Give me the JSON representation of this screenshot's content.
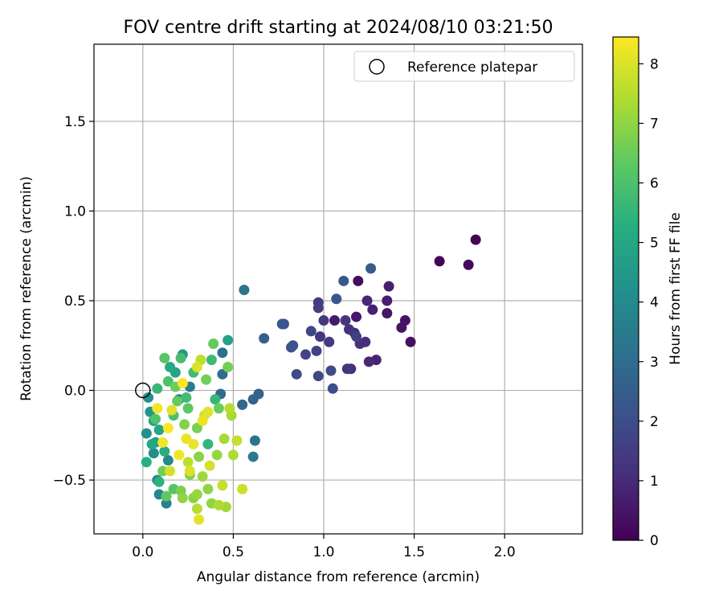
{
  "chart_data": {
    "type": "scatter",
    "title": "FOV centre drift starting at 2024/08/10 03:21:50",
    "xlabel": "Angular distance from reference (arcmin)",
    "ylabel": "Rotation from reference (arcmin)",
    "xlim": [
      -0.27,
      2.43
    ],
    "ylim": [
      -0.8,
      1.93
    ],
    "xticks": [
      {
        "v": 0.0,
        "label": "0.0"
      },
      {
        "v": 0.5,
        "label": "0.5"
      },
      {
        "v": 1.0,
        "label": "1.0"
      },
      {
        "v": 1.5,
        "label": "1.5"
      },
      {
        "v": 2.0,
        "label": "2.0"
      }
    ],
    "yticks": [
      {
        "v": -0.5,
        "label": "−0.5"
      },
      {
        "v": 0.0,
        "label": "0.0"
      },
      {
        "v": 0.5,
        "label": "0.5"
      },
      {
        "v": 1.0,
        "label": "1.0"
      },
      {
        "v": 1.5,
        "label": "1.5"
      }
    ],
    "grid": true,
    "legend": {
      "position": "top-right",
      "entries": [
        {
          "label": "Reference platepar",
          "marker": "open-circle"
        }
      ]
    },
    "colorbar": {
      "label": "Hours from first FF file",
      "colormap": "viridis",
      "range": [
        0,
        8.45
      ],
      "ticks": [
        {
          "v": 0,
          "label": "0"
        },
        {
          "v": 1,
          "label": "1"
        },
        {
          "v": 2,
          "label": "2"
        },
        {
          "v": 3,
          "label": "3"
        },
        {
          "v": 4,
          "label": "4"
        },
        {
          "v": 5,
          "label": "5"
        },
        {
          "v": 6,
          "label": "6"
        },
        {
          "v": 7,
          "label": "7"
        },
        {
          "v": 8,
          "label": "8"
        }
      ]
    },
    "reference_point": {
      "x": 0.0,
      "y": 0.0
    },
    "points": [
      [
        1.84,
        0.84,
        0.05
      ],
      [
        1.64,
        0.72,
        0.1
      ],
      [
        1.8,
        0.7,
        0.15
      ],
      [
        1.19,
        0.61,
        0.3
      ],
      [
        1.48,
        0.27,
        0.35
      ],
      [
        1.45,
        0.39,
        0.4
      ],
      [
        1.43,
        0.35,
        0.45
      ],
      [
        1.35,
        0.43,
        0.5
      ],
      [
        1.18,
        0.41,
        0.55
      ],
      [
        1.06,
        0.39,
        0.6
      ],
      [
        1.36,
        0.58,
        0.7
      ],
      [
        1.35,
        0.5,
        0.75
      ],
      [
        1.27,
        0.45,
        0.8
      ],
      [
        1.29,
        0.17,
        0.85
      ],
      [
        1.24,
        0.5,
        0.9
      ],
      [
        1.25,
        0.16,
        0.95
      ],
      [
        1.17,
        0.32,
        1.0
      ],
      [
        1.15,
        0.12,
        1.05
      ],
      [
        1.23,
        0.27,
        1.1
      ],
      [
        1.2,
        0.26,
        1.15
      ],
      [
        1.14,
        0.34,
        1.2
      ],
      [
        1.13,
        0.12,
        1.25
      ],
      [
        1.12,
        0.39,
        1.3
      ],
      [
        0.98,
        0.3,
        1.35
      ],
      [
        1.0,
        0.39,
        1.4
      ],
      [
        1.03,
        0.27,
        1.45
      ],
      [
        0.97,
        0.46,
        1.5
      ],
      [
        0.97,
        0.49,
        1.55
      ],
      [
        1.18,
        0.3,
        1.6
      ],
      [
        0.96,
        0.22,
        1.7
      ],
      [
        0.9,
        0.2,
        1.75
      ],
      [
        0.93,
        0.33,
        1.8
      ],
      [
        0.97,
        0.08,
        1.85
      ],
      [
        1.04,
        0.11,
        1.9
      ],
      [
        0.85,
        0.09,
        1.95
      ],
      [
        1.05,
        0.01,
        2.0
      ],
      [
        0.83,
        0.25,
        2.05
      ],
      [
        0.82,
        0.24,
        2.1
      ],
      [
        0.78,
        0.37,
        2.15
      ],
      [
        0.77,
        0.37,
        2.2
      ],
      [
        1.07,
        0.51,
        2.25
      ],
      [
        1.11,
        0.61,
        2.3
      ],
      [
        1.26,
        0.68,
        2.4
      ],
      [
        0.67,
        0.29,
        2.5
      ],
      [
        0.64,
        -0.02,
        2.6
      ],
      [
        0.61,
        -0.05,
        2.7
      ],
      [
        0.55,
        -0.08,
        2.8
      ],
      [
        0.43,
        -0.02,
        2.9
      ],
      [
        0.44,
        0.09,
        3.0
      ],
      [
        0.44,
        0.21,
        3.1
      ],
      [
        0.56,
        0.56,
        3.2
      ],
      [
        0.62,
        -0.28,
        3.3
      ],
      [
        0.61,
        -0.37,
        3.4
      ],
      [
        0.26,
        0.02,
        3.5
      ],
      [
        0.2,
        -0.05,
        3.6
      ],
      [
        0.13,
        -0.63,
        3.7
      ],
      [
        0.08,
        -0.5,
        3.8
      ],
      [
        0.09,
        -0.58,
        3.9
      ],
      [
        0.14,
        -0.39,
        4.0
      ],
      [
        0.06,
        -0.35,
        4.1
      ],
      [
        0.03,
        -0.04,
        4.2
      ],
      [
        0.02,
        -0.24,
        4.3
      ],
      [
        0.04,
        -0.12,
        4.4
      ],
      [
        0.22,
        0.2,
        4.5
      ],
      [
        0.07,
        -0.29,
        4.6
      ],
      [
        0.06,
        -0.17,
        4.7
      ],
      [
        0.47,
        0.28,
        4.8
      ],
      [
        0.18,
        0.1,
        4.9
      ],
      [
        0.09,
        -0.22,
        5.0
      ],
      [
        0.15,
        0.13,
        5.1
      ],
      [
        0.12,
        -0.34,
        5.2
      ],
      [
        0.02,
        -0.4,
        5.3
      ],
      [
        0.09,
        -0.51,
        5.4
      ],
      [
        0.36,
        -0.3,
        5.5
      ],
      [
        0.4,
        -0.05,
        5.6
      ],
      [
        0.38,
        0.17,
        5.7
      ],
      [
        0.24,
        -0.04,
        5.8
      ],
      [
        0.21,
        0.18,
        5.9
      ],
      [
        0.17,
        -0.14,
        6.0
      ],
      [
        0.07,
        -0.16,
        6.1
      ],
      [
        0.12,
        0.18,
        6.2
      ],
      [
        0.25,
        -0.1,
        6.3
      ],
      [
        0.39,
        0.26,
        6.4
      ],
      [
        0.18,
        0.02,
        6.5
      ],
      [
        0.35,
        0.06,
        6.6
      ],
      [
        0.3,
        -0.21,
        6.7
      ],
      [
        0.26,
        -0.47,
        6.8
      ],
      [
        0.28,
        -0.6,
        6.9
      ],
      [
        0.38,
        -0.63,
        7.0
      ],
      [
        0.47,
        0.13,
        6.6
      ],
      [
        0.3,
        -0.58,
        7.1
      ],
      [
        0.33,
        -0.48,
        7.2
      ],
      [
        0.45,
        -0.27,
        7.3
      ],
      [
        0.5,
        -0.36,
        7.4
      ],
      [
        0.3,
        -0.66,
        7.5
      ],
      [
        0.25,
        -0.4,
        7.6
      ],
      [
        0.52,
        -0.28,
        7.7
      ],
      [
        0.55,
        -0.55,
        7.8
      ],
      [
        0.37,
        -0.42,
        7.9
      ],
      [
        0.26,
        -0.45,
        8.0
      ],
      [
        0.31,
        -0.72,
        8.1
      ],
      [
        0.33,
        -0.17,
        8.2
      ],
      [
        0.08,
        -0.1,
        8.3
      ],
      [
        0.22,
        0.04,
        8.4
      ],
      [
        0.3,
        0.13,
        8.0
      ],
      [
        0.36,
        -0.12,
        8.1
      ],
      [
        0.24,
        -0.27,
        8.2
      ],
      [
        0.2,
        -0.36,
        8.3
      ],
      [
        0.14,
        -0.21,
        8.4
      ],
      [
        0.11,
        -0.29,
        8.3
      ],
      [
        0.28,
        -0.3,
        8.2
      ],
      [
        0.16,
        -0.11,
        8.1
      ],
      [
        0.44,
        -0.53,
        7.7
      ],
      [
        0.15,
        -0.45,
        7.9
      ],
      [
        0.48,
        -0.1,
        7.5
      ],
      [
        0.49,
        -0.14,
        7.3
      ],
      [
        0.32,
        0.17,
        7.6
      ],
      [
        0.42,
        -0.64,
        7.4
      ],
      [
        0.46,
        -0.65,
        7.2
      ],
      [
        0.36,
        -0.55,
        7.0
      ],
      [
        0.19,
        -0.06,
        6.4
      ],
      [
        0.14,
        0.05,
        6.0
      ],
      [
        0.28,
        0.1,
        5.8
      ],
      [
        0.08,
        0.01,
        5.6
      ],
      [
        0.23,
        -0.19,
        6.8
      ],
      [
        0.11,
        -0.45,
        6.6
      ],
      [
        0.17,
        -0.55,
        6.2
      ],
      [
        0.31,
        -0.37,
        6.9
      ],
      [
        0.42,
        -0.1,
        6.5
      ],
      [
        0.05,
        -0.3,
        5.0
      ],
      [
        0.13,
        -0.59,
        6.3
      ],
      [
        0.21,
        -0.56,
        6.7
      ],
      [
        0.22,
        -0.6,
        7.0
      ],
      [
        0.34,
        -0.14,
        7.8
      ],
      [
        0.41,
        -0.36,
        7.1
      ]
    ]
  }
}
